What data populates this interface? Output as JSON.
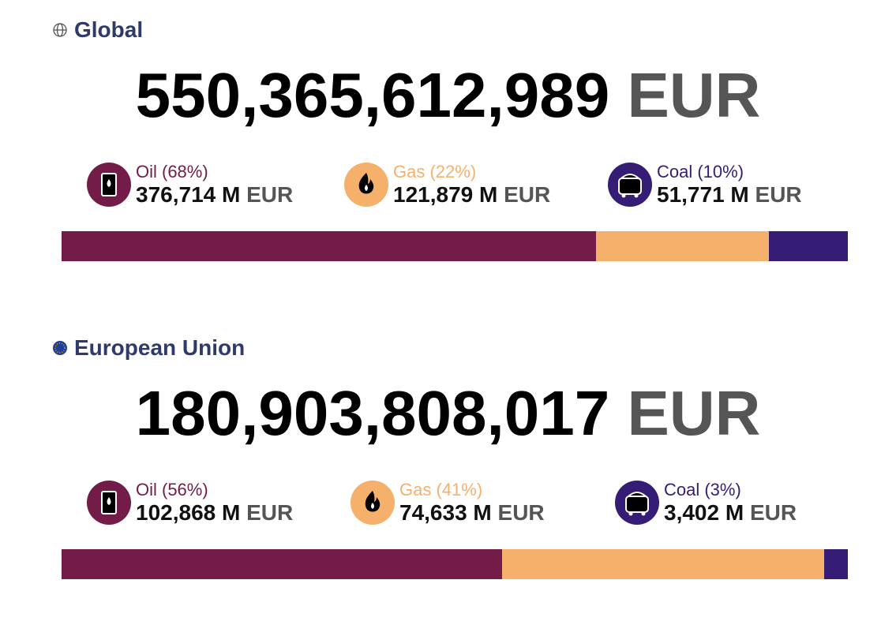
{
  "sections": [
    {
      "title": "Global",
      "total": "550,365,612,989",
      "currency": "EUR",
      "items": [
        {
          "label": "Oil (68%)",
          "share": 68,
          "amount": "376,714 M",
          "currency": "EUR",
          "color": "#721c47",
          "icon": "oil"
        },
        {
          "label": "Gas (22%)",
          "share": 22,
          "amount": "121,879 M",
          "currency": "EUR",
          "color": "#f5b06b",
          "icon": "gas"
        },
        {
          "label": "Coal (10%)",
          "share": 10,
          "amount": "51,771 M",
          "currency": "EUR",
          "color": "#351c75",
          "icon": "coal"
        }
      ]
    },
    {
      "title": "European Union",
      "total": "180,903,808,017",
      "currency": "EUR",
      "items": [
        {
          "label": "Oil (56%)",
          "share": 56,
          "amount": "102,868 M",
          "currency": "EUR",
          "color": "#721c47",
          "icon": "oil"
        },
        {
          "label": "Gas (41%)",
          "share": 41,
          "amount": "74,633 M",
          "currency": "EUR",
          "color": "#f5b06b",
          "icon": "gas"
        },
        {
          "label": "Coal (3%)",
          "share": 3,
          "amount": "3,402 M",
          "currency": "EUR",
          "color": "#351c75",
          "icon": "coal"
        }
      ]
    }
  ]
}
